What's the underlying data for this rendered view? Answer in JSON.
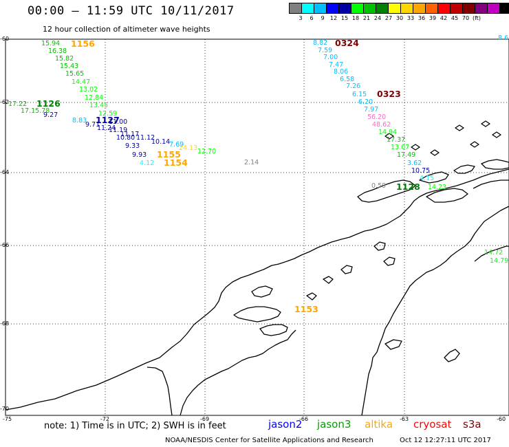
{
  "header": {
    "title": "00:00 – 11:59 UTC 10/11/2017",
    "subtitle": "12 hour collection of altimeter wave heights"
  },
  "colorbar": {
    "colors": [
      "#808080",
      "#00ffff",
      "#00bfff",
      "#0000ff",
      "#0000a0",
      "#00ff00",
      "#00c000",
      "#008000",
      "#ffff00",
      "#ffd700",
      "#ffa500",
      "#ff6000",
      "#ff0000",
      "#c00000",
      "#800000",
      "#800080",
      "#c000c0",
      "#000000"
    ],
    "labels": [
      "3",
      "6",
      "9",
      "12",
      "15",
      "18",
      "21",
      "24",
      "27",
      "30",
      "33",
      "36",
      "39",
      "42",
      "45",
      "70",
      "(ft)"
    ]
  },
  "axes": {
    "lat_labels": [
      "-60",
      "-62",
      "-64",
      "-66",
      "-68",
      "-70"
    ],
    "lon_labels": [
      "-75",
      "-72",
      "-69",
      "-66",
      "-63",
      "-60"
    ]
  },
  "wave_heights": [
    {
      "text": "15.94",
      "color": "#00c000"
    },
    {
      "text": "16.38",
      "color": "#00c000"
    },
    {
      "text": "15.82",
      "color": "#00c000"
    },
    {
      "text": "15.43",
      "color": "#00c000"
    },
    {
      "text": "15.65",
      "color": "#00c000"
    },
    {
      "text": "14.47",
      "color": "#00ff00"
    },
    {
      "text": "13.02",
      "color": "#00ff00"
    },
    {
      "text": "12.84",
      "color": "#00ff00"
    },
    {
      "text": "17.22",
      "color": "#00c000"
    },
    {
      "text": "17.15.78",
      "color": "#00c000"
    },
    {
      "text": "13.45",
      "color": "#00ff00"
    },
    {
      "text": "12.59",
      "color": "#00ff00"
    },
    {
      "text": "9.27",
      "color": "#0000a0"
    },
    {
      "text": "8.83",
      "color": "#00bfff"
    },
    {
      "text": "9.71",
      "color": "#0000a0"
    },
    {
      "text": "11.00",
      "color": "#0000a0"
    },
    {
      "text": "11.24",
      "color": "#0000a0"
    },
    {
      "text": "11.19",
      "color": "#0000a0"
    },
    {
      "text": "11.17",
      "color": "#0000a0"
    },
    {
      "text": "10.80",
      "color": "#0000a0"
    },
    {
      "text": "11.12",
      "color": "#0000a0"
    },
    {
      "text": "10.14",
      "color": "#0000a0"
    },
    {
      "text": "7.69",
      "color": "#00bfff"
    },
    {
      "text": "24.13",
      "color": "#ffd700"
    },
    {
      "text": "12.70",
      "color": "#00ff00"
    },
    {
      "text": "9.33",
      "color": "#0000a0"
    },
    {
      "text": "9.93",
      "color": "#0000a0"
    },
    {
      "text": "4.12",
      "color": "#00ffff"
    },
    {
      "text": "2.14",
      "color": "#808080"
    },
    {
      "text": "8.82",
      "color": "#00bfff"
    },
    {
      "text": "7.59",
      "color": "#00bfff"
    },
    {
      "text": "7.00",
      "color": "#00bfff"
    },
    {
      "text": "7.47",
      "color": "#00bfff"
    },
    {
      "text": "8.06",
      "color": "#00bfff"
    },
    {
      "text": "6.58",
      "color": "#00bfff"
    },
    {
      "text": "7.26",
      "color": "#00bfff"
    },
    {
      "text": "6.15",
      "color": "#00bfff"
    },
    {
      "text": "6.20",
      "color": "#00bfff"
    },
    {
      "text": "7.97",
      "color": "#00bfff"
    },
    {
      "text": "56.20",
      "color": "#ff66cc"
    },
    {
      "text": "48.62",
      "color": "#ff66cc"
    },
    {
      "text": "14.94",
      "color": "#00ff00"
    },
    {
      "text": "17.37",
      "color": "#00c000"
    },
    {
      "text": "13.07",
      "color": "#00ff00"
    },
    {
      "text": "17.49",
      "color": "#00c000"
    },
    {
      "text": "3.62",
      "color": "#00bfff"
    },
    {
      "text": "10.75",
      "color": "#0000a0"
    },
    {
      "text": "4.15",
      "color": "#00ffff"
    },
    {
      "text": "0.59",
      "color": "#808080"
    },
    {
      "text": "14.23",
      "color": "#00ff00"
    },
    {
      "text": "8.6",
      "color": "#00bfff"
    },
    {
      "text": "14.72",
      "color": "#00ff00"
    },
    {
      "text": "14.79",
      "color": "#00ff00"
    }
  ],
  "pass_times": [
    {
      "text": "1156",
      "color": "#ffa500"
    },
    {
      "text": "1126",
      "color": "#008000"
    },
    {
      "text": "1127",
      "color": "#0000a0"
    },
    {
      "text": "1155",
      "color": "#ffa500"
    },
    {
      "text": "1154",
      "color": "#ffa500"
    },
    {
      "text": "0324",
      "color": "#800000"
    },
    {
      "text": "0323",
      "color": "#800000"
    },
    {
      "text": "1128",
      "color": "#008000"
    },
    {
      "text": "1153",
      "color": "#ffa500"
    }
  ],
  "footer": {
    "note": "note: 1) Time is in UTC; 2) SWH is in feet",
    "satellites": [
      {
        "name": "jason2",
        "color": "#0000ff"
      },
      {
        "name": "jason3",
        "color": "#00a000"
      },
      {
        "name": "altika",
        "color": "#ffa500"
      },
      {
        "name": "cryosat",
        "color": "#ff0000"
      },
      {
        "name": "s3a",
        "color": "#800000"
      }
    ],
    "credit": "NOAA/NESDIS Center for Satellite Applications and Research",
    "timestamp": "Oct 12 12:27:11 UTC 2017"
  }
}
